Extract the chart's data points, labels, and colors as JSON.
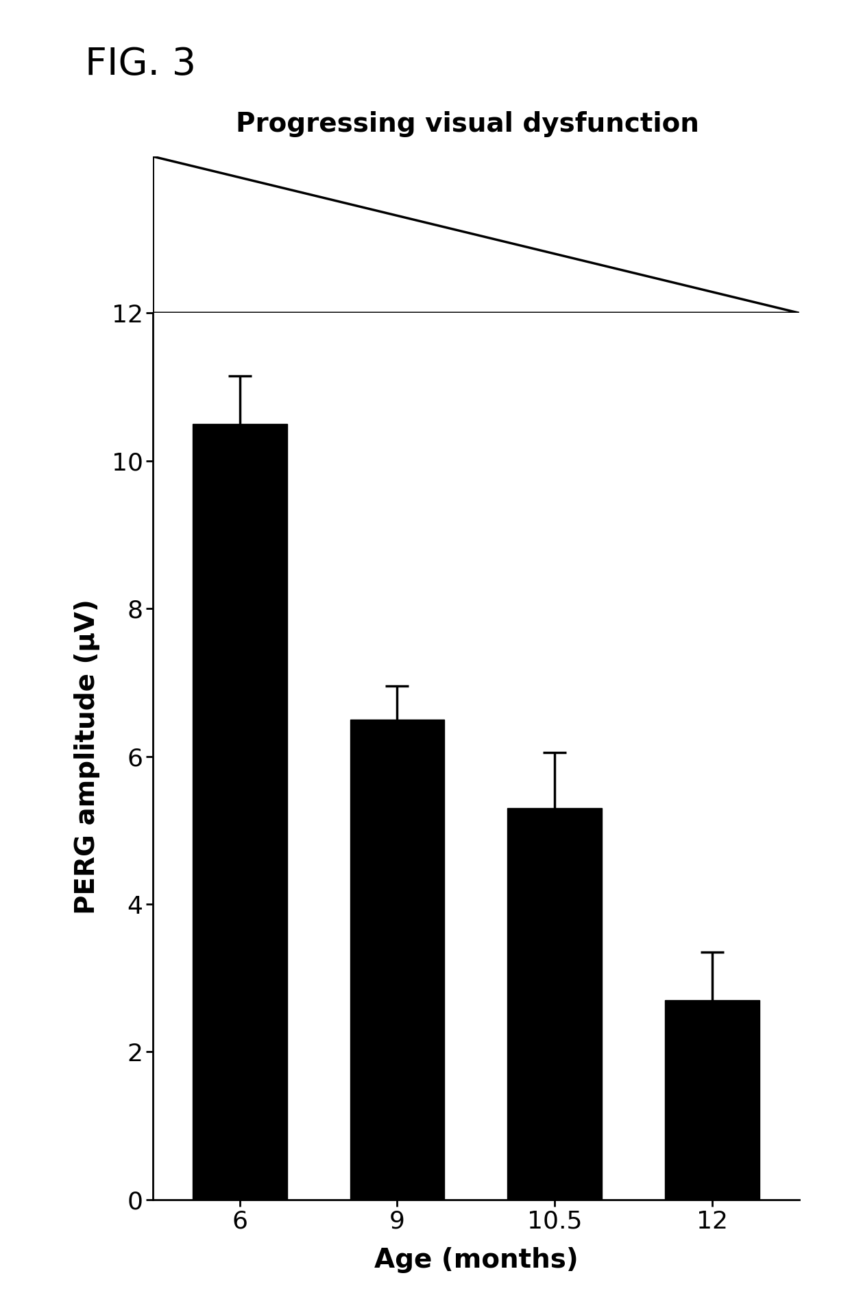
{
  "title": "FIG. 3",
  "subtitle": "Progressing visual dysfunction",
  "categories": [
    "6",
    "9",
    "10.5",
    "12"
  ],
  "values": [
    10.5,
    6.5,
    5.3,
    2.7
  ],
  "errors": [
    0.65,
    0.45,
    0.75,
    0.65
  ],
  "bar_color": "#000000",
  "ylabel": "PERG amplitude (μV)",
  "xlabel": "Age (months)",
  "ylim": [
    0,
    12
  ],
  "yticks": [
    0,
    2,
    4,
    6,
    8,
    10,
    12
  ],
  "background_color": "#ffffff",
  "title_fontsize": 40,
  "subtitle_fontsize": 28,
  "axis_label_fontsize": 28,
  "tick_fontsize": 26
}
